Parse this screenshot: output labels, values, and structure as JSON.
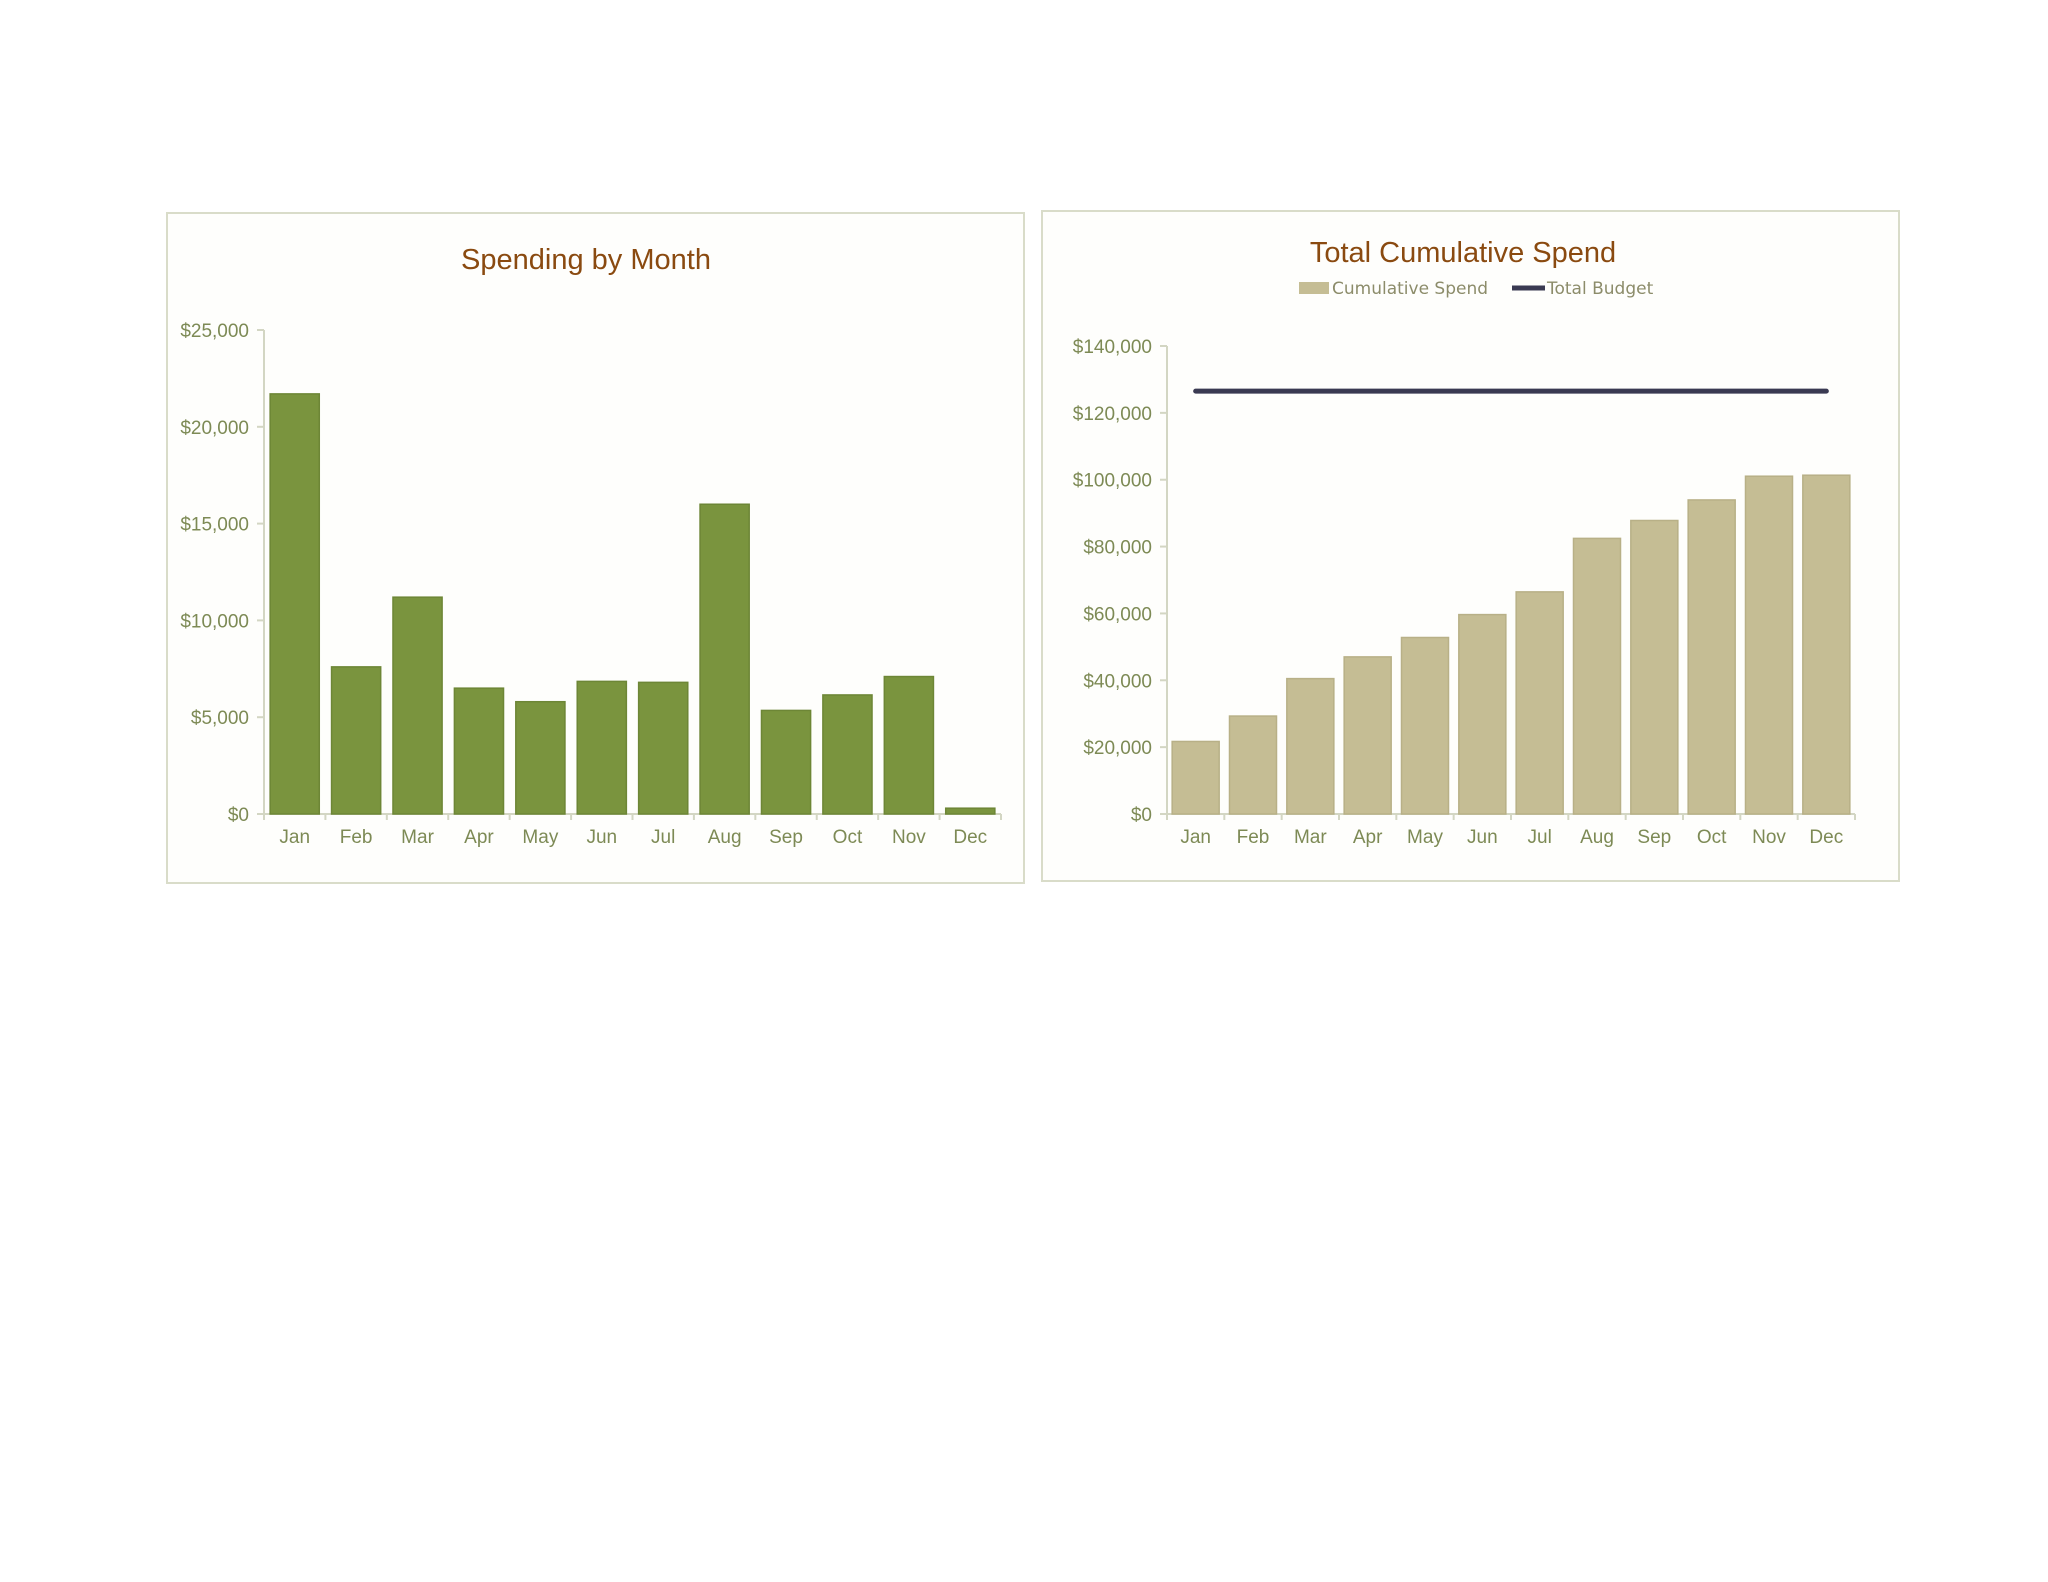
{
  "chart_data": [
    {
      "type": "bar",
      "title": "Spending by Month",
      "xlabel": "",
      "ylabel": "",
      "categories": [
        "Jan",
        "Feb",
        "Mar",
        "Apr",
        "May",
        "Jun",
        "Jul",
        "Aug",
        "Sep",
        "Oct",
        "Nov",
        "Dec"
      ],
      "values": [
        21700,
        7600,
        11200,
        6500,
        5800,
        6850,
        6800,
        16000,
        5350,
        6150,
        7100,
        300
      ],
      "ylim": [
        0,
        25000
      ],
      "yticks": [
        "$0",
        "$5,000",
        "$10,000",
        "$15,000",
        "$20,000",
        "$25,000"
      ],
      "ytick_values": [
        0,
        5000,
        10000,
        15000,
        20000,
        25000
      ],
      "colors": {
        "bar": "#7a943e"
      },
      "grid": false,
      "legend": "none"
    },
    {
      "type": "bar",
      "title": "Total Cumulative Spend",
      "xlabel": "",
      "ylabel": "",
      "categories": [
        "Jan",
        "Feb",
        "Mar",
        "Apr",
        "May",
        "Jun",
        "Jul",
        "Aug",
        "Sep",
        "Oct",
        "Nov",
        "Dec"
      ],
      "series": [
        {
          "name": "Cumulative Spend",
          "kind": "bar",
          "values": [
            21700,
            29300,
            40500,
            47000,
            52800,
            59650,
            66450,
            82450,
            87800,
            93950,
            101050,
            101350
          ]
        },
        {
          "name": "Total Budget",
          "kind": "line",
          "values": [
            126500,
            126500,
            126500,
            126500,
            126500,
            126500,
            126500,
            126500,
            126500,
            126500,
            126500,
            126500
          ]
        }
      ],
      "ylim": [
        0,
        140000
      ],
      "yticks": [
        "$0",
        "$20,000",
        "$40,000",
        "$60,000",
        "$80,000",
        "$100,000",
        "$120,000",
        "$140,000"
      ],
      "ytick_values": [
        0,
        20000,
        40000,
        60000,
        80000,
        100000,
        120000,
        140000
      ],
      "colors": {
        "bar": "#c5bd94",
        "line": "#3a3a52"
      },
      "grid": false,
      "legend": "top-center"
    }
  ]
}
